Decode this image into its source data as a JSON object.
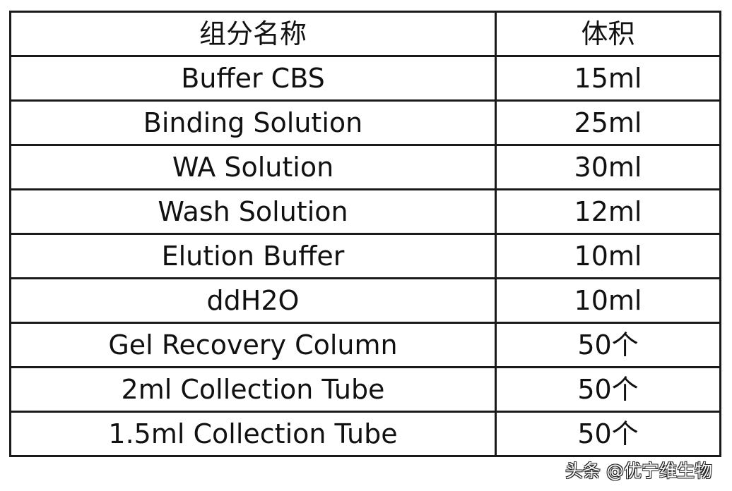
{
  "table": {
    "headers": [
      "组分名称",
      "体积"
    ],
    "rows": [
      {
        "name": "Buffer CBS",
        "volume": "15ml"
      },
      {
        "name": "Binding Solution",
        "volume": "25ml"
      },
      {
        "name": "WA Solution",
        "volume": "30ml"
      },
      {
        "name": "Wash Solution",
        "volume": "12ml"
      },
      {
        "name": "Elution Buffer",
        "volume": "10ml"
      },
      {
        "name": "ddH2O",
        "volume": "10ml"
      },
      {
        "name": "Gel Recovery Column",
        "volume": "50个"
      },
      {
        "name": "2ml Collection Tube",
        "volume": "50个"
      },
      {
        "name": "1.5ml Collection Tube",
        "volume": "50个"
      }
    ]
  },
  "watermark": "头条 @优宁维生物"
}
